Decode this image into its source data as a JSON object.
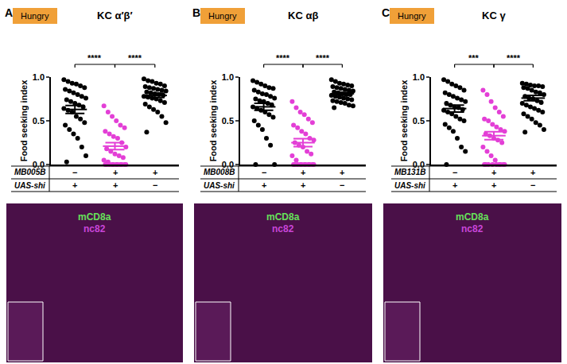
{
  "chart_data": [
    {
      "type": "scatter",
      "panel": "A",
      "badge": "Hungry",
      "title": "KC α′β′",
      "ylabel": "Food seeking index",
      "categories": [
        null,
        null,
        null
      ],
      "groups": [
        {
          "color": "#000000",
          "values": [
            0.97,
            0.95,
            0.93,
            0.92,
            0.9,
            0.88,
            0.86,
            0.84,
            0.82,
            0.8,
            0.78,
            0.76,
            0.74,
            0.72,
            0.7,
            0.68,
            0.66,
            0.64,
            0.62,
            0.6,
            0.55,
            0.52,
            0.48,
            0.45,
            0.4,
            0.35,
            0.3,
            0.2,
            0.1,
            0.03
          ],
          "mean": 0.63,
          "sem": 0.045
        },
        {
          "color": "#e33fd6",
          "values": [
            0.67,
            0.6,
            0.55,
            0.5,
            0.45,
            0.42,
            0.38,
            0.35,
            0.32,
            0.3,
            0.25,
            0.2,
            0.18,
            0.15,
            0.12,
            0.1,
            0.08,
            0.05,
            0.03,
            0,
            0,
            0,
            0,
            0,
            0,
            0,
            0,
            0,
            0,
            0
          ],
          "mean": 0.21,
          "sem": 0.04
        },
        {
          "color": "#000000",
          "values": [
            0.98,
            0.96,
            0.95,
            0.93,
            0.92,
            0.9,
            0.89,
            0.88,
            0.87,
            0.86,
            0.85,
            0.84,
            0.83,
            0.82,
            0.81,
            0.8,
            0.79,
            0.78,
            0.77,
            0.76,
            0.75,
            0.73,
            0.71,
            0.69,
            0.66,
            0.63,
            0.6,
            0.55,
            0.48,
            0.37
          ],
          "mean": 0.79,
          "sem": 0.025
        }
      ],
      "ylim": [
        0,
        1
      ],
      "yticks": [
        {
          "value": 0,
          "label": "0.0"
        },
        {
          "value": 0.5,
          "label": "0.5"
        },
        {
          "value": 1,
          "label": "1.0"
        }
      ],
      "genotype": [
        {
          "label": "MB005B",
          "values": [
            "−",
            "+",
            "+"
          ]
        },
        {
          "label": "UAS-shi",
          "values": [
            "+",
            "+",
            "−"
          ]
        }
      ],
      "comparisons": [
        {
          "from": 0,
          "to": 1,
          "label": "****"
        },
        {
          "from": 1,
          "to": 2,
          "label": "****"
        }
      ],
      "image_labels": [
        {
          "text": "mCD8a",
          "color": "#66e05a"
        },
        {
          "text": "nc82",
          "color": "#c845d8"
        }
      ]
    },
    {
      "type": "scatter",
      "panel": "B",
      "badge": "Hungry",
      "title": "KC αβ",
      "ylabel": "Food seeking index",
      "categories": [
        null,
        null,
        null
      ],
      "groups": [
        {
          "color": "#000000",
          "values": [
            0.96,
            0.94,
            0.92,
            0.9,
            0.88,
            0.87,
            0.85,
            0.83,
            0.81,
            0.8,
            0.78,
            0.76,
            0.75,
            0.73,
            0.72,
            0.7,
            0.68,
            0.66,
            0.64,
            0.62,
            0.6,
            0.57,
            0.54,
            0.5,
            0.45,
            0.4,
            0.3,
            0.22,
            0,
            0
          ],
          "mean": 0.66,
          "sem": 0.04
        },
        {
          "color": "#e33fd6",
          "values": [
            0.72,
            0.65,
            0.6,
            0.57,
            0.52,
            0.48,
            0.45,
            0.42,
            0.38,
            0.35,
            0.3,
            0.28,
            0.25,
            0.22,
            0.2,
            0.15,
            0.12,
            0.1,
            0.05,
            0,
            0,
            0,
            0,
            0,
            0,
            0,
            0,
            0,
            0,
            0
          ],
          "mean": 0.25,
          "sem": 0.045
        },
        {
          "color": "#000000",
          "values": [
            0.97,
            0.95,
            0.93,
            0.92,
            0.91,
            0.9,
            0.89,
            0.88,
            0.87,
            0.86,
            0.85,
            0.84,
            0.83,
            0.82,
            0.81,
            0.8,
            0.8,
            0.79,
            0.78,
            0.77,
            0.76,
            0.75,
            0.74,
            0.73,
            0.72,
            0.71,
            0.7,
            0.68,
            0.67,
            0.65
          ],
          "mean": 0.81,
          "sem": 0.015
        }
      ],
      "ylim": [
        0,
        1
      ],
      "yticks": [
        {
          "value": 0,
          "label": "0.0"
        },
        {
          "value": 0.5,
          "label": "0.5"
        },
        {
          "value": 1,
          "label": "1.0"
        }
      ],
      "genotype": [
        {
          "label": "MB008B",
          "values": [
            "−",
            "+",
            "+"
          ]
        },
        {
          "label": "UAS-shi",
          "values": [
            "+",
            "+",
            "−"
          ]
        }
      ],
      "comparisons": [
        {
          "from": 0,
          "to": 1,
          "label": "****"
        },
        {
          "from": 1,
          "to": 2,
          "label": "****"
        }
      ],
      "image_labels": [
        {
          "text": "mCD8a",
          "color": "#66e05a"
        },
        {
          "text": "nc82",
          "color": "#c845d8"
        }
      ]
    },
    {
      "type": "scatter",
      "panel": "C",
      "badge": "Hungry",
      "title": "KC γ",
      "ylabel": "Food seeking index",
      "categories": [
        null,
        null,
        null
      ],
      "groups": [
        {
          "color": "#000000",
          "values": [
            0.97,
            0.95,
            0.92,
            0.9,
            0.88,
            0.85,
            0.82,
            0.8,
            0.78,
            0.76,
            0.74,
            0.72,
            0.7,
            0.68,
            0.66,
            0.65,
            0.63,
            0.62,
            0.6,
            0.58,
            0.55,
            0.52,
            0.5,
            0.46,
            0.42,
            0.38,
            0.3,
            0.2,
            0.15,
            0
          ],
          "mean": 0.64,
          "sem": 0.04
        },
        {
          "color": "#e33fd6",
          "values": [
            0.85,
            0.8,
            0.72,
            0.65,
            0.6,
            0.55,
            0.52,
            0.5,
            0.46,
            0.43,
            0.4,
            0.38,
            0.35,
            0.33,
            0.3,
            0.28,
            0.25,
            0.2,
            0.15,
            0.1,
            0.05,
            0,
            0,
            0,
            0,
            0,
            0,
            0,
            0,
            0
          ],
          "mean": 0.33,
          "sem": 0.045
        },
        {
          "color": "#000000",
          "values": [
            0.93,
            0.92,
            0.91,
            0.9,
            0.9,
            0.89,
            0.88,
            0.87,
            0.85,
            0.83,
            0.82,
            0.8,
            0.78,
            0.76,
            0.75,
            0.73,
            0.71,
            0.7,
            0.68,
            0.66,
            0.64,
            0.62,
            0.6,
            0.58,
            0.55,
            0.52,
            0.48,
            0.45,
            0.4,
            0.37
          ],
          "mean": 0.76,
          "sem": 0.03
        }
      ],
      "ylim": [
        0,
        1
      ],
      "yticks": [
        {
          "value": 0,
          "label": "0.0"
        },
        {
          "value": 0.5,
          "label": "0.5"
        },
        {
          "value": 1,
          "label": "1.0"
        }
      ],
      "genotype": [
        {
          "label": "MB131B",
          "values": [
            "−",
            "+",
            "+"
          ]
        },
        {
          "label": "UAS-shi",
          "values": [
            "+",
            "+",
            "−"
          ]
        }
      ],
      "comparisons": [
        {
          "from": 0,
          "to": 1,
          "label": "***"
        },
        {
          "from": 1,
          "to": 2,
          "label": "****"
        }
      ],
      "image_labels": [
        {
          "text": "mCD8a",
          "color": "#66e05a"
        },
        {
          "text": "nc82",
          "color": "#c845d8"
        }
      ]
    }
  ]
}
